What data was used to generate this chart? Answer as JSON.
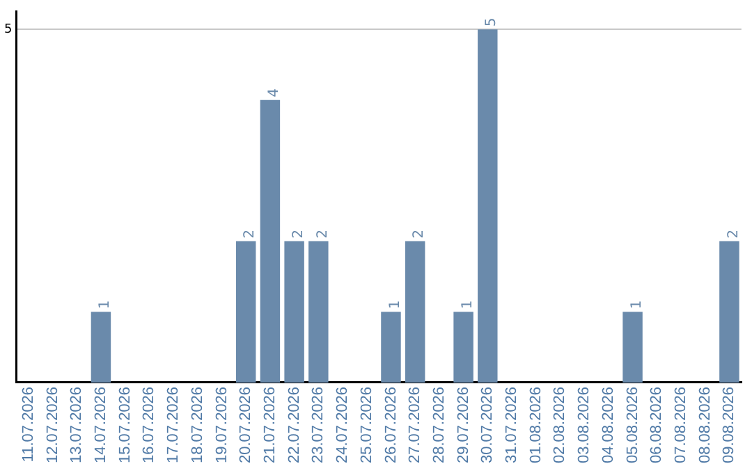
{
  "chart_data": {
    "type": "bar",
    "categories": [
      "11.07.2026",
      "12.07.2026",
      "13.07.2026",
      "14.07.2026",
      "15.07.2026",
      "16.07.2026",
      "17.07.2026",
      "18.07.2026",
      "19.07.2026",
      "20.07.2026",
      "21.07.2026",
      "22.07.2026",
      "23.07.2026",
      "24.07.2026",
      "25.07.2026",
      "26.07.2026",
      "27.07.2026",
      "28.07.2026",
      "29.07.2026",
      "30.07.2026",
      "31.07.2026",
      "01.08.2026",
      "02.08.2026",
      "03.08.2026",
      "04.08.2026",
      "05.08.2026",
      "06.08.2026",
      "07.08.2026",
      "08.08.2026",
      "09.08.2026"
    ],
    "values": [
      0,
      0,
      0,
      1,
      0,
      0,
      0,
      0,
      0,
      2,
      4,
      2,
      2,
      0,
      0,
      1,
      2,
      0,
      1,
      5,
      0,
      0,
      0,
      0,
      0,
      1,
      0,
      0,
      0,
      2
    ],
    "value_labels": [
      null,
      null,
      null,
      "1",
      null,
      null,
      null,
      null,
      null,
      "2",
      "4",
      "2",
      "2",
      null,
      null,
      "1",
      "2",
      null,
      "1",
      "5",
      null,
      null,
      null,
      null,
      null,
      "1",
      null,
      null,
      null,
      "2"
    ],
    "color": "#6a8aab",
    "ylim": [
      0,
      5.25
    ],
    "yticks": [
      5
    ],
    "grid": "y",
    "legend": false
  }
}
